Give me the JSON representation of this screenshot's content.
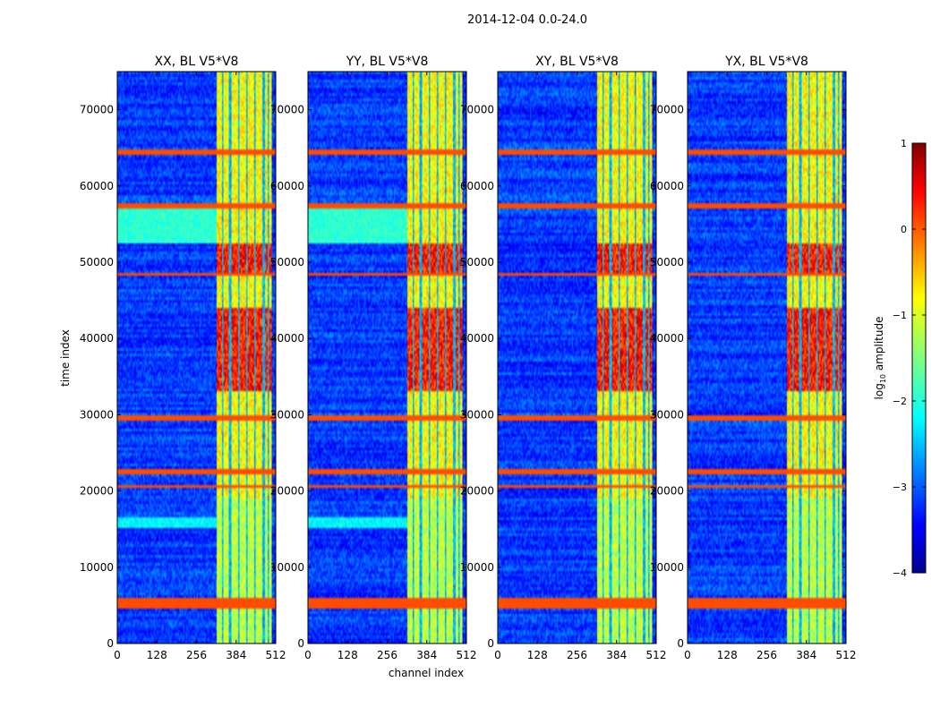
{
  "figure": {
    "suptitle": "2014-12-04 0.0-24.0"
  },
  "chart_data": {
    "type": "heatmap",
    "shared": {
      "xlabel": "channel index",
      "ylabel": "time index",
      "xlim": [
        0,
        512
      ],
      "ylim": [
        0,
        75000
      ],
      "xticks": [
        0,
        128,
        256,
        384,
        512
      ],
      "xtick_labels": [
        "0",
        "128",
        "256",
        "384",
        "512"
      ],
      "yticks": [
        0,
        10000,
        20000,
        30000,
        40000,
        50000,
        60000,
        70000
      ],
      "ytick_labels": [
        "0",
        "10000",
        "20000",
        "30000",
        "40000",
        "50000",
        "60000",
        "70000"
      ],
      "colormap": "jet"
    },
    "panels": [
      {
        "title": "XX, BL V5*V8",
        "polarization": "XX"
      },
      {
        "title": "YY, BL V5*V8",
        "polarization": "YY"
      },
      {
        "title": "XY, BL V5*V8",
        "polarization": "XY"
      },
      {
        "title": "YX, BL V5*V8",
        "polarization": "YX"
      }
    ],
    "colorbar": {
      "label_prefix": "log",
      "label_sub": "10",
      "label_suffix": " amplitude",
      "range": [
        -4,
        1
      ],
      "ticks": [
        1,
        0,
        -1,
        -2,
        -3,
        -4
      ],
      "tick_labels": [
        "1",
        "0",
        "−1",
        "−2",
        "−3",
        "−4"
      ]
    },
    "features": {
      "band_channels": [
        320,
        500
      ],
      "band_columns": [
        340,
        365,
        395,
        420,
        445,
        475,
        490
      ],
      "flag_rows": [
        4800,
        5400,
        20500,
        22500,
        29500,
        48500,
        57500,
        64500
      ],
      "hot_regions": [
        {
          "t0": 33000,
          "t1": 44000,
          "ch0": 320,
          "ch1": 500
        },
        {
          "t0": 48500,
          "t1": 52500,
          "ch0": 320,
          "ch1": 500
        }
      ]
    }
  }
}
